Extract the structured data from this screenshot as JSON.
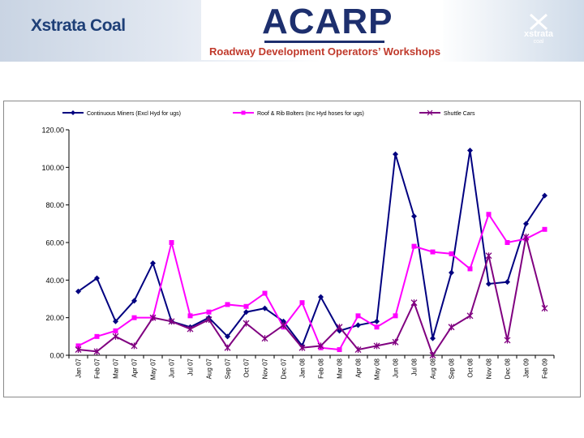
{
  "header": {
    "company_left": "Xstrata Coal",
    "logo_center": "ACARP",
    "subtitle": "Roadway Development Operators’ Workshops",
    "logo_right": "xstrata",
    "logo_right_sub": "coal"
  },
  "chart_data": {
    "type": "line",
    "categories": [
      "Jan 07",
      "Feb 07",
      "Mar 07",
      "Apr 07",
      "May 07",
      "Jun 07",
      "Jul 07",
      "Aug 07",
      "Sep 07",
      "Oct 07",
      "Nov 07",
      "Dec 07",
      "Jan 08",
      "Feb 08",
      "Mar 08",
      "Apr 08",
      "May 08",
      "Jun 08",
      "Jul 08",
      "Aug 08",
      "Sep 08",
      "Oct 08",
      "Nov 08",
      "Dec 08",
      "Jan 09",
      "Feb 09"
    ],
    "yticks": [
      "0.00",
      "20.00",
      "40.00",
      "60.00",
      "80.00",
      "100.00",
      "120.00"
    ],
    "ylim": [
      0,
      120
    ],
    "legend_position": "top",
    "grid": false,
    "series": [
      {
        "name": "Continuous Miners (Excl Hyd for ugs)",
        "color": "#000080",
        "marker": "diamond",
        "values": [
          34,
          41,
          18,
          29,
          49,
          18,
          15,
          20,
          10,
          23,
          25,
          18,
          5,
          31,
          13,
          16,
          18,
          107,
          74,
          9,
          44,
          109,
          38,
          39,
          70,
          85
        ]
      },
      {
        "name": "Roof & Rib Bolters (Inc Hyd hoses for ugs)",
        "color": "#ff00ff",
        "marker": "square",
        "values": [
          5,
          10,
          13,
          20,
          20,
          60,
          21,
          23,
          27,
          26,
          33,
          15,
          28,
          4,
          3,
          21,
          15,
          21,
          58,
          55,
          54,
          46,
          75,
          60,
          62,
          67
        ]
      },
      {
        "name": "Shuttle Cars",
        "color": "#800080",
        "marker": "star",
        "values": [
          3,
          2,
          10,
          5,
          20,
          18,
          14,
          19,
          4,
          17,
          9,
          16,
          4,
          5,
          15,
          3,
          5,
          7,
          28,
          0,
          15,
          21,
          53,
          8,
          63,
          25
        ]
      }
    ]
  }
}
